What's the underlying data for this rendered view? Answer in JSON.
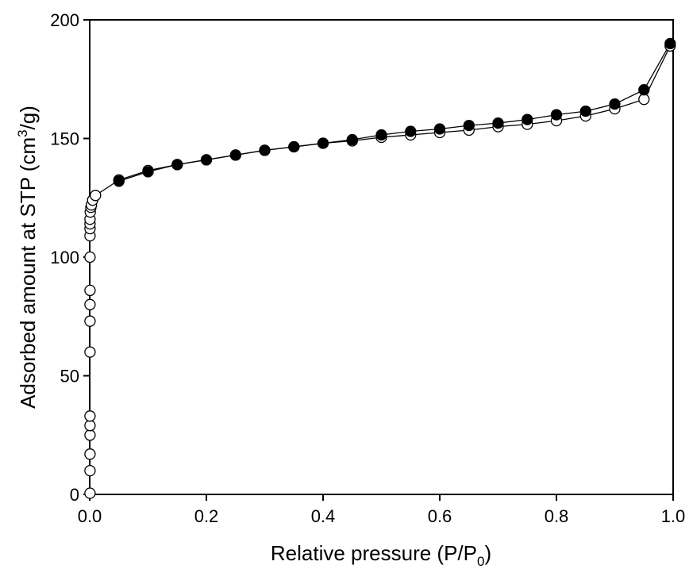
{
  "chart_data": {
    "type": "line",
    "xlabel_main": "Relative pressure (P/P",
    "xlabel_sub": "0",
    "xlabel_end": ")",
    "ylabel_main": "Adsorbed amount at STP (cm",
    "ylabel_sup": "3",
    "ylabel_end": "/g)",
    "xlim": [
      0.0,
      1.0
    ],
    "ylim": [
      0,
      200
    ],
    "xticks": [
      "0.0",
      "0.2",
      "0.4",
      "0.6",
      "0.8",
      "1.0"
    ],
    "xtick_values": [
      0.0,
      0.2,
      0.4,
      0.6,
      0.8,
      1.0
    ],
    "yticks": [
      "0",
      "50",
      "100",
      "150",
      "200"
    ],
    "ytick_values": [
      0,
      50,
      100,
      150,
      200
    ],
    "grid": false,
    "series": [
      {
        "marker": "open-circle",
        "x": [
          0.0005,
          0.0005,
          0.0005,
          0.0005,
          0.0005,
          0.0005,
          0.0005,
          0.0005,
          0.0005,
          0.0005,
          0.0005,
          0.0005,
          0.0005,
          0.0005,
          0.0005,
          0.001,
          0.002,
          0.003,
          0.005,
          0.01,
          0.05,
          0.1,
          0.15,
          0.2,
          0.25,
          0.3,
          0.35,
          0.4,
          0.45,
          0.5,
          0.55,
          0.6,
          0.65,
          0.7,
          0.75,
          0.8,
          0.85,
          0.9,
          0.95,
          0.995
        ],
        "y": [
          0.5,
          10,
          17,
          25,
          29,
          33,
          60,
          73,
          80,
          86,
          100,
          109,
          112,
          114,
          116,
          119,
          121,
          122,
          124,
          126,
          132.5,
          136.5,
          139,
          141,
          143,
          145,
          146.5,
          148,
          149,
          150.5,
          151.5,
          152.5,
          153.5,
          155,
          156,
          157.5,
          159.5,
          162.5,
          166.5,
          189
        ]
      },
      {
        "marker": "filled-circle",
        "x": [
          0.05,
          0.1,
          0.15,
          0.2,
          0.25,
          0.3,
          0.35,
          0.4,
          0.45,
          0.5,
          0.55,
          0.6,
          0.65,
          0.7,
          0.75,
          0.8,
          0.85,
          0.9,
          0.95,
          0.995
        ],
        "y": [
          132,
          136,
          139,
          141,
          143,
          145,
          146.5,
          148,
          149.5,
          151.5,
          153,
          154,
          155.5,
          156.5,
          158,
          160,
          161.5,
          164.5,
          170.5,
          190
        ]
      }
    ]
  }
}
